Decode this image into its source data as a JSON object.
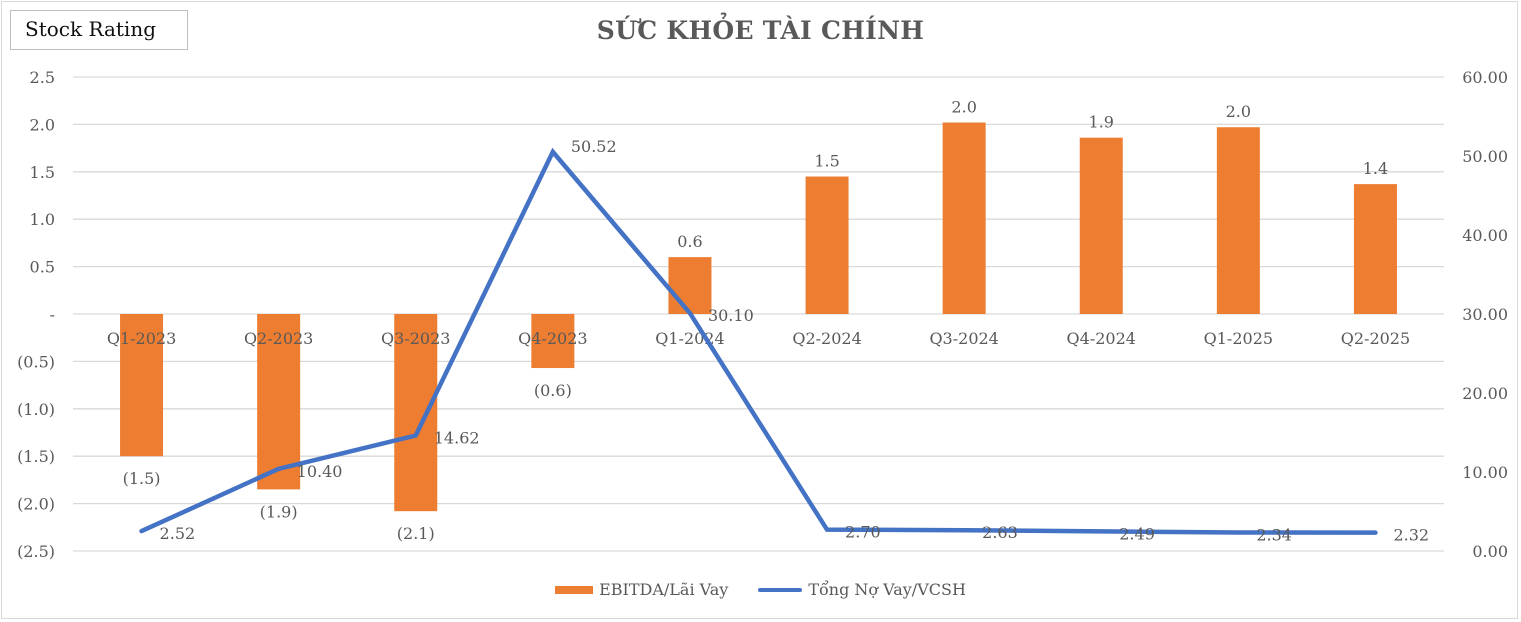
{
  "badge": {
    "label": "Stock Rating"
  },
  "title": "SỨC KHỎE TÀI CHÍNH",
  "colors": {
    "bar": "#ed7d31",
    "line": "#4472c4",
    "grid": "#d9d9d9",
    "text": "#595959"
  },
  "legend": [
    {
      "label": "EBITDA/Lãi Vay",
      "type": "bar"
    },
    {
      "label": "Tổng Nợ Vay/VCSH",
      "type": "line"
    }
  ],
  "axes": {
    "left_ticks": [
      "2.5",
      "2.0",
      "1.5",
      "1.0",
      "0.5",
      "-",
      "(0.5)",
      "(1.0)",
      "(1.5)",
      "(2.0)",
      "(2.5)"
    ],
    "right_ticks": [
      "60.00",
      "50.00",
      "40.00",
      "30.00",
      "20.00",
      "10.00",
      "0.00"
    ]
  },
  "chart_data": {
    "type": "bar",
    "title": "SỨC KHỎE TÀI CHÍNH",
    "categories": [
      "Q1-2023",
      "Q2-2023",
      "Q3-2023",
      "Q4-2023",
      "Q1-2024",
      "Q2-2024",
      "Q3-2024",
      "Q4-2024",
      "Q1-2025",
      "Q2-2025"
    ],
    "series": [
      {
        "name": "EBITDA/Lãi Vay",
        "type": "bar",
        "axis": "left",
        "values": [
          -1.5,
          -1.85,
          -2.08,
          -0.57,
          0.6,
          1.45,
          2.02,
          1.86,
          1.97,
          1.37
        ],
        "labels": [
          "(1.5)",
          "(1.9)",
          "(2.1)",
          "(0.6)",
          "0.6",
          "1.5",
          "2.0",
          "1.9",
          "2.0",
          "1.4"
        ]
      },
      {
        "name": "Tổng Nợ Vay/VCSH",
        "type": "line",
        "axis": "right",
        "values": [
          2.52,
          10.4,
          14.62,
          50.52,
          30.1,
          2.7,
          2.63,
          2.49,
          2.34,
          2.32
        ],
        "labels": [
          "2.52",
          "10.40",
          "14.62",
          "50.52",
          "30.10",
          "2.70",
          "2.63",
          "2.49",
          "2.34",
          "2.32"
        ]
      }
    ],
    "xlabel": "",
    "ylabel": "",
    "ylim_left": [
      -2.5,
      2.5
    ],
    "ylim_right": [
      0,
      60
    ],
    "grid": true,
    "legend_position": "bottom"
  }
}
